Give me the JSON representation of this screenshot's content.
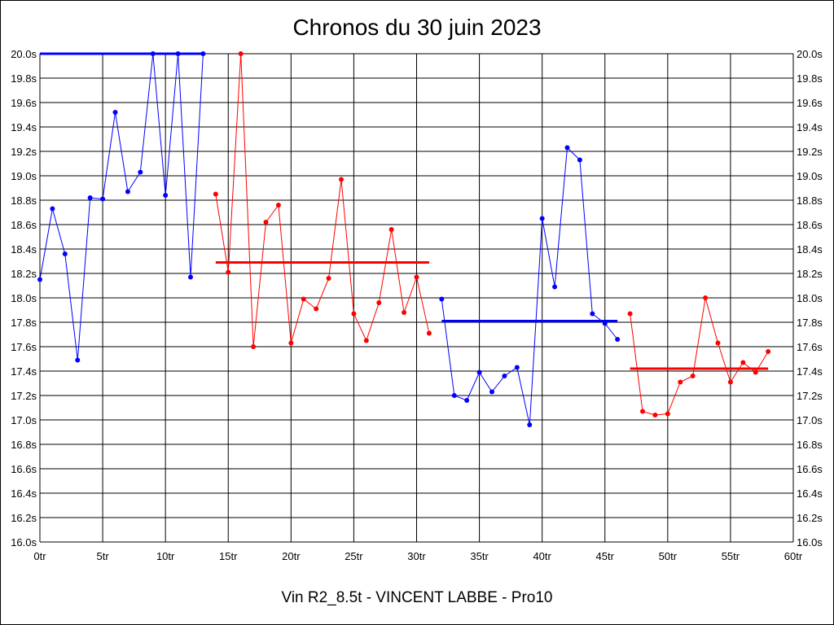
{
  "chart_data": {
    "type": "line",
    "title": "Chronos du 30 juin 2023",
    "footer": "Vin R2_8.5t - VINCENT LABBE - Pro10",
    "xlim": [
      0,
      60
    ],
    "ylim": [
      16.0,
      20.0
    ],
    "x_ticks": [
      "0tr",
      "5tr",
      "10tr",
      "15tr",
      "20tr",
      "25tr",
      "30tr",
      "35tr",
      "40tr",
      "45tr",
      "50tr",
      "55tr",
      "60tr"
    ],
    "y_ticks": [
      "16.0s",
      "16.2s",
      "16.4s",
      "16.6s",
      "16.8s",
      "17.0s",
      "17.2s",
      "17.4s",
      "17.6s",
      "17.8s",
      "18.0s",
      "18.2s",
      "18.4s",
      "18.6s",
      "18.8s",
      "19.0s",
      "19.2s",
      "19.4s",
      "19.6s",
      "19.8s",
      "20.0s"
    ],
    "grid": true,
    "colors": {
      "blue": "#0000ff",
      "red": "#ff0000"
    },
    "series": [
      {
        "color": "#0000ff",
        "points": [
          [
            0,
            18.15
          ],
          [
            1,
            18.73
          ],
          [
            2,
            18.36
          ],
          [
            3,
            17.49
          ],
          [
            4,
            18.82
          ],
          [
            5,
            18.81
          ],
          [
            6,
            19.52
          ],
          [
            7,
            18.87
          ],
          [
            8,
            19.03
          ],
          [
            9,
            20.0
          ],
          [
            10,
            18.84
          ],
          [
            11,
            20.0
          ],
          [
            12,
            18.17
          ],
          [
            13,
            20.0
          ]
        ],
        "average": 20.0
      },
      {
        "color": "#ff0000",
        "points": [
          [
            14,
            18.85
          ],
          [
            15,
            18.21
          ],
          [
            16,
            20.0
          ],
          [
            17,
            17.6
          ],
          [
            18,
            18.62
          ],
          [
            19,
            18.76
          ],
          [
            20,
            17.63
          ],
          [
            21,
            17.99
          ],
          [
            22,
            17.91
          ],
          [
            23,
            18.16
          ],
          [
            24,
            18.97
          ],
          [
            25,
            17.87
          ],
          [
            26,
            17.65
          ],
          [
            27,
            17.96
          ],
          [
            28,
            18.56
          ],
          [
            29,
            17.88
          ],
          [
            30,
            18.17
          ],
          [
            31,
            17.71
          ]
        ],
        "average": 18.29
      },
      {
        "color": "#0000ff",
        "points": [
          [
            32,
            17.99
          ],
          [
            33,
            17.2
          ],
          [
            34,
            17.16
          ],
          [
            35,
            17.39
          ],
          [
            36,
            17.23
          ],
          [
            37,
            17.36
          ],
          [
            38,
            17.43
          ],
          [
            39,
            16.96
          ],
          [
            40,
            18.65
          ],
          [
            41,
            18.09
          ],
          [
            42,
            19.23
          ],
          [
            43,
            19.13
          ],
          [
            44,
            17.87
          ],
          [
            45,
            17.79
          ],
          [
            46,
            17.66
          ]
        ],
        "average": 17.81
      },
      {
        "color": "#ff0000",
        "points": [
          [
            47,
            17.87
          ],
          [
            48,
            17.07
          ],
          [
            49,
            17.04
          ],
          [
            50,
            17.05
          ],
          [
            51,
            17.31
          ],
          [
            52,
            17.36
          ],
          [
            53,
            18.0
          ],
          [
            54,
            17.63
          ],
          [
            55,
            17.31
          ],
          [
            56,
            17.47
          ],
          [
            57,
            17.39
          ],
          [
            58,
            17.56
          ]
        ],
        "average": 17.42
      }
    ]
  }
}
